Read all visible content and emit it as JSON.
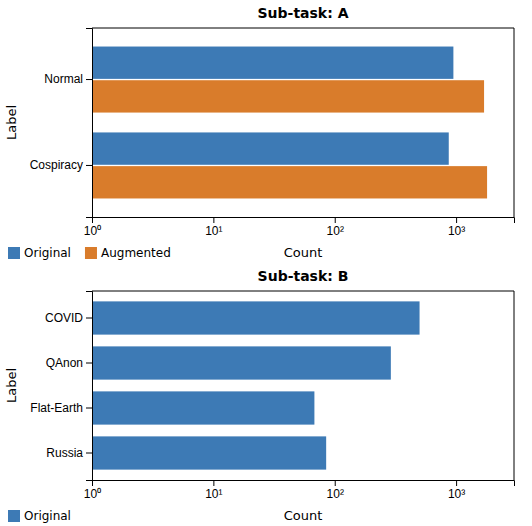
{
  "chart_data": [
    {
      "type": "bar",
      "orientation": "horizontal",
      "title": "Sub-task: A",
      "x_label": "Count",
      "y_label": "Label",
      "categories": [
        "Normal",
        "Cospiracy"
      ],
      "series": [
        {
          "name": "Original",
          "color": "#3d7ab5",
          "values": [
            950,
            870
          ]
        },
        {
          "name": "Augmented",
          "color": "#d97c2b",
          "values": [
            1700,
            1800
          ]
        }
      ],
      "log": "x",
      "xlim": [
        1,
        3000
      ],
      "xticks": [
        {
          "value": 1,
          "label": "10⁰"
        },
        {
          "value": 10,
          "label": "10¹"
        },
        {
          "value": 100,
          "label": "10²"
        },
        {
          "value": 1000,
          "label": "10³"
        }
      ],
      "legend": "lower left"
    },
    {
      "type": "bar",
      "orientation": "horizontal",
      "title": "Sub-task: B",
      "x_label": "Count",
      "y_label": "Label",
      "categories": [
        "COVID",
        "QAnon",
        "Flat-Earth",
        "Russia"
      ],
      "series": [
        {
          "name": "Original",
          "color": "#3d7ab5",
          "values": [
            500,
            290,
            68,
            85
          ]
        }
      ],
      "log": "x",
      "xlim": [
        1,
        3000
      ],
      "xticks": [
        {
          "value": 1,
          "label": "10⁰"
        },
        {
          "value": 10,
          "label": "10¹"
        },
        {
          "value": 100,
          "label": "10²"
        },
        {
          "value": 1000,
          "label": "10³"
        }
      ],
      "legend": "lower left"
    }
  ]
}
